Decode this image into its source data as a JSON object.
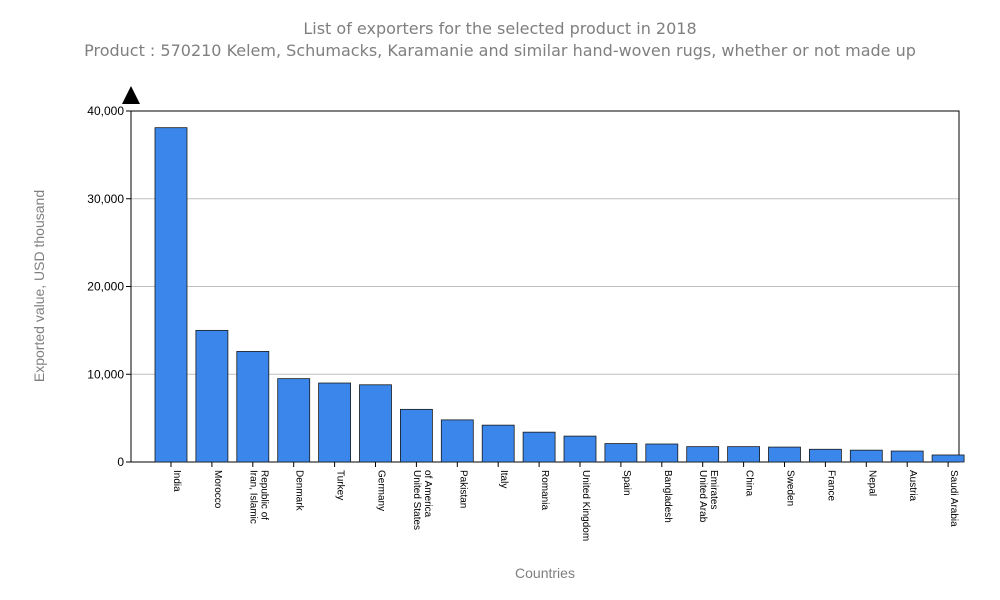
{
  "chart_data": {
    "type": "bar",
    "title": "List of exporters for the selected product in 2018",
    "subtitle": "Product : 570210 Kelem, Schumacks, Karamanie and similar hand-woven rugs, whether or not made up",
    "xlabel": "Countries",
    "ylabel": "Exported value, USD thousand",
    "ylim": [
      0,
      40000
    ],
    "yticks": [
      0,
      10000,
      20000,
      30000,
      40000
    ],
    "ytick_labels": [
      "0",
      "10,000",
      "20,000",
      "30,000",
      "40,000"
    ],
    "grid": true,
    "bar_color": "#3b86eb",
    "categories": [
      [
        "India"
      ],
      [
        "Morocco"
      ],
      [
        "Iran, Islamic",
        "Republic of"
      ],
      [
        "Denmark"
      ],
      [
        "Turkey"
      ],
      [
        "Germany"
      ],
      [
        "United States",
        "of America"
      ],
      [
        "Pakistan"
      ],
      [
        "Italy"
      ],
      [
        "Romania"
      ],
      [
        "United Kingdom"
      ],
      [
        "Spain"
      ],
      [
        "Bangladesh"
      ],
      [
        "United Arab",
        "Emirates"
      ],
      [
        "China"
      ],
      [
        "Sweden"
      ],
      [
        "France"
      ],
      [
        "Nepal"
      ],
      [
        "Austria"
      ],
      [
        "Saudi Arabia"
      ]
    ],
    "values": [
      38100,
      15000,
      12600,
      9500,
      9000,
      8800,
      6000,
      4800,
      4200,
      3400,
      2950,
      2100,
      2050,
      1750,
      1750,
      1700,
      1450,
      1350,
      1250,
      800
    ]
  }
}
